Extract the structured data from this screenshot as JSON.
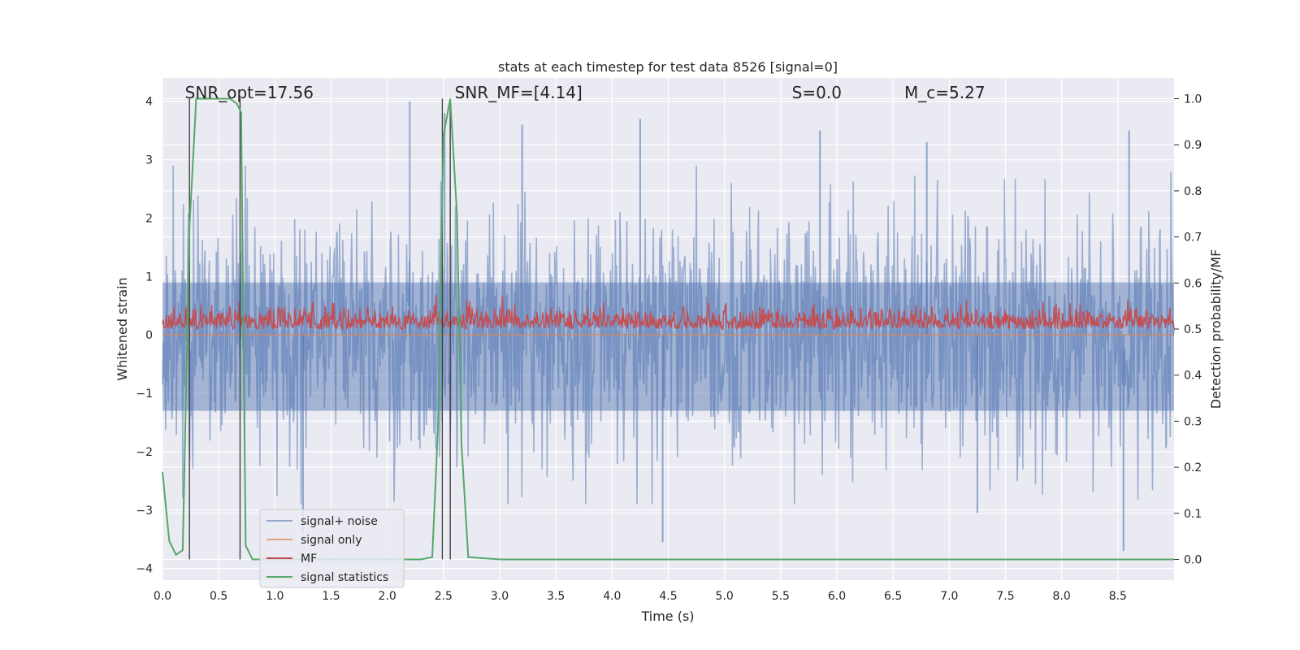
{
  "chart_data": {
    "type": "line",
    "title": "stats at each timestep for test data 8526 [signal=0]",
    "xlabel": "Time (s)",
    "ylabel": "Whitened strain",
    "y2label": "Detection probability/MF",
    "xlim": [
      0.0,
      9.0
    ],
    "ylim": [
      -4.2,
      4.4
    ],
    "y2lim": [
      -0.045,
      1.045
    ],
    "x_ticks": [
      0.0,
      0.5,
      1.0,
      1.5,
      2.0,
      2.5,
      3.0,
      3.5,
      4.0,
      4.5,
      5.0,
      5.5,
      6.0,
      6.5,
      7.0,
      7.5,
      8.0,
      8.5
    ],
    "x_tick_labels": [
      "0.0",
      "0.5",
      "1.0",
      "1.5",
      "2.0",
      "2.5",
      "3.0",
      "3.5",
      "4.0",
      "4.5",
      "5.0",
      "5.5",
      "6.0",
      "6.5",
      "7.0",
      "7.5",
      "8.0",
      "8.5"
    ],
    "y_ticks": [
      -4,
      -3,
      -2,
      -1,
      0,
      1,
      2,
      3,
      4
    ],
    "y_tick_labels": [
      "−4",
      "−3",
      "−2",
      "−1",
      "0",
      "1",
      "2",
      "3",
      "4"
    ],
    "y2_ticks": [
      0.0,
      0.1,
      0.2,
      0.3,
      0.4,
      0.5,
      0.6,
      0.7,
      0.8,
      0.9,
      1.0
    ],
    "y2_tick_labels": [
      "0.0",
      "0.1",
      "0.2",
      "0.3",
      "0.4",
      "0.5",
      "0.6",
      "0.7",
      "0.8",
      "0.9",
      "1.0"
    ],
    "grid": true,
    "legend_position": "lower-left",
    "annotations": [
      {
        "text": "SNR_opt=17.56",
        "x": 0.2,
        "y": 4.05
      },
      {
        "text": "SNR_MF=[4.14]",
        "x": 2.6,
        "y": 4.05
      },
      {
        "text": "S=0.0",
        "x": 5.6,
        "y": 4.05
      },
      {
        "text": "M_c=5.27",
        "x": 6.6,
        "y": 4.05
      }
    ],
    "vertical_lines": [
      {
        "x": 0.24,
        "y2_range": [
          0.0,
          1.0
        ]
      },
      {
        "x": 0.69,
        "y2_range": [
          0.0,
          1.0
        ]
      },
      {
        "x": 2.49,
        "y2_range": [
          0.0,
          1.0
        ]
      },
      {
        "x": 2.56,
        "y2_range": [
          0.0,
          1.0
        ]
      }
    ],
    "series": [
      {
        "name": "signal+ noise",
        "color": "#4c72b0",
        "style": "dense noise band",
        "approx_range": [
          -2.6,
          2.6
        ],
        "peaks": [
          [
            2.2,
            4.0
          ],
          [
            2.51,
            3.8
          ],
          [
            3.2,
            3.6
          ],
          [
            4.25,
            3.7
          ],
          [
            5.85,
            3.5
          ],
          [
            6.8,
            3.3
          ],
          [
            8.6,
            3.5
          ],
          [
            8.55,
            -3.7
          ],
          [
            4.45,
            -3.55
          ],
          [
            7.25,
            -3.05
          ],
          [
            1.25,
            -3.4
          ]
        ]
      },
      {
        "name": "signal only",
        "color": "#dd8452",
        "values_constant": 0.0
      },
      {
        "name": "MF",
        "color": "#c44e52",
        "axis": "y2",
        "style": "dense band",
        "approx_range": [
          0.5,
          0.58
        ]
      },
      {
        "name": "signal statistics",
        "color": "#55a868",
        "axis": "y2",
        "x": [
          0.0,
          0.06,
          0.12,
          0.18,
          0.24,
          0.3,
          0.36,
          0.42,
          0.48,
          0.54,
          0.6,
          0.66,
          0.7,
          0.74,
          0.8,
          0.9,
          1.0,
          1.1,
          1.2,
          1.3,
          1.5,
          2.0,
          2.3,
          2.4,
          2.45,
          2.5,
          2.56,
          2.62,
          2.66,
          2.72,
          3.0,
          4.0,
          5.0,
          6.0,
          7.0,
          8.0,
          9.0
        ],
        "y": [
          0.19,
          0.04,
          0.01,
          0.02,
          0.72,
          1.0,
          1.0,
          1.0,
          1.0,
          1.0,
          1.0,
          0.99,
          0.97,
          0.03,
          0.0,
          0.0,
          0.0,
          0.0,
          0.0,
          0.0,
          0.0,
          0.0,
          0.0,
          0.005,
          0.28,
          0.92,
          1.0,
          0.75,
          0.25,
          0.005,
          0.0,
          0.0,
          0.0,
          0.0,
          0.0,
          0.0,
          0.0
        ]
      }
    ]
  }
}
